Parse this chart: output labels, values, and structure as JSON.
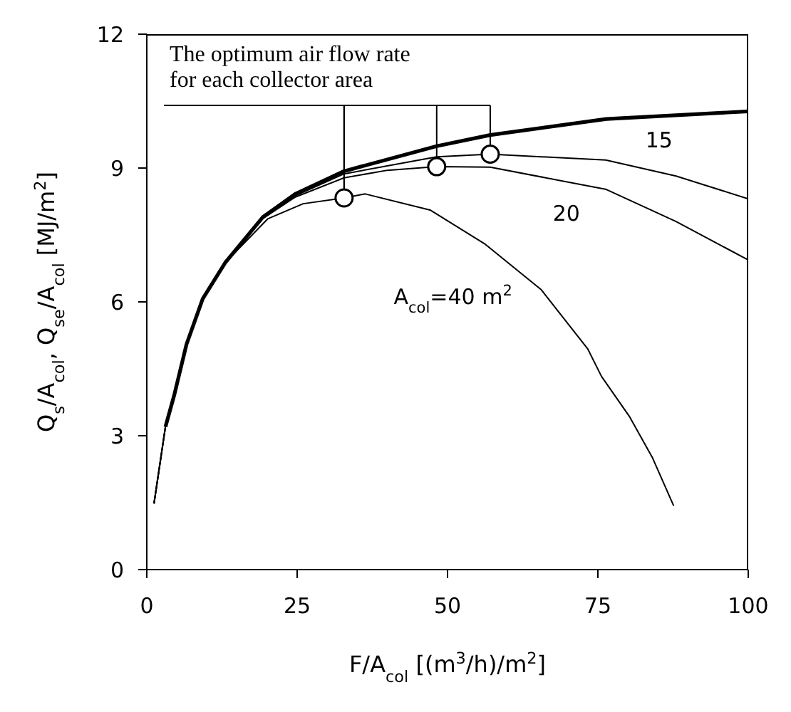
{
  "chart_data": {
    "type": "line",
    "xlabel": "F/A$_{col}$ [(m$^{3}$/h)/m$^{2}$]",
    "ylabel": "Q$_{s}$/A$_{col}$, Q$_{se}$/A$_{col}$ [MJ/m$^{2}$]",
    "xlim": [
      0,
      100
    ],
    "xticks": [
      0,
      25,
      50,
      75,
      100
    ],
    "ylim": [
      0,
      12
    ],
    "yticks": [
      0,
      3,
      6,
      9,
      12
    ],
    "grid": false,
    "legend": false,
    "marker": "none",
    "line_style": "solid",
    "annotations": [
      {
        "text": "The optimum air flow rate for each collector area",
        "x": 32.8,
        "y": 8.33
      }
    ],
    "series": [
      {
        "color": "#000000",
        "x": [
          3.1,
          4.6,
          6.6,
          9.3,
          13.1,
          19.3,
          24.7,
          32.8,
          48.2,
          57.1,
          76.4,
          100
        ],
        "values": [
          3.2,
          3.93,
          5.05,
          6.07,
          6.89,
          7.9,
          8.42,
          8.93,
          9.49,
          9.74,
          10.1,
          10.27
        ]
      },
      {
        "name": "15",
        "color": "#000000",
        "x": [
          1.2,
          3.1,
          4.6,
          6.6,
          9.3,
          13.1,
          19.3,
          24.7,
          32.8,
          48.2,
          57.1,
          76.3,
          88,
          100
        ],
        "values": [
          1.48,
          3.2,
          3.93,
          5.05,
          6.07,
          6.89,
          7.88,
          8.38,
          8.87,
          9.25,
          9.31,
          9.18,
          8.82,
          8.31
        ]
      },
      {
        "name": "20",
        "color": "#000000",
        "x": [
          1.2,
          3.1,
          4.6,
          6.6,
          9.3,
          13.1,
          19.3,
          24.7,
          32.8,
          40,
          48.2,
          57.1,
          76.4,
          88,
          100
        ],
        "values": [
          1.48,
          3.2,
          3.93,
          5.05,
          6.07,
          6.89,
          7.87,
          8.35,
          8.78,
          8.95,
          9.03,
          9.02,
          8.52,
          7.8,
          6.94
        ]
      },
      {
        "name": "A$_{col}$=40 m$^{2}$",
        "color": "#000000",
        "x": [
          1.2,
          3.1,
          4.6,
          6.6,
          9.3,
          13.1,
          20.1,
          26,
          32.8,
          36.3,
          47.1,
          56.3,
          65.6,
          73.3,
          75.6,
          80.3,
          84.1,
          87.6
        ],
        "values": [
          1.48,
          3.2,
          3.93,
          5.05,
          6.07,
          6.89,
          7.86,
          8.2,
          8.33,
          8.42,
          8.06,
          7.29,
          6.27,
          4.95,
          4.33,
          3.42,
          2.5,
          1.43
        ]
      },
      {
        "type": "scatter",
        "marker": "circle",
        "color": "#000000",
        "x": [
          32.8,
          48.2,
          57.1
        ],
        "values": [
          8.33,
          9.03,
          9.31
        ]
      }
    ]
  }
}
